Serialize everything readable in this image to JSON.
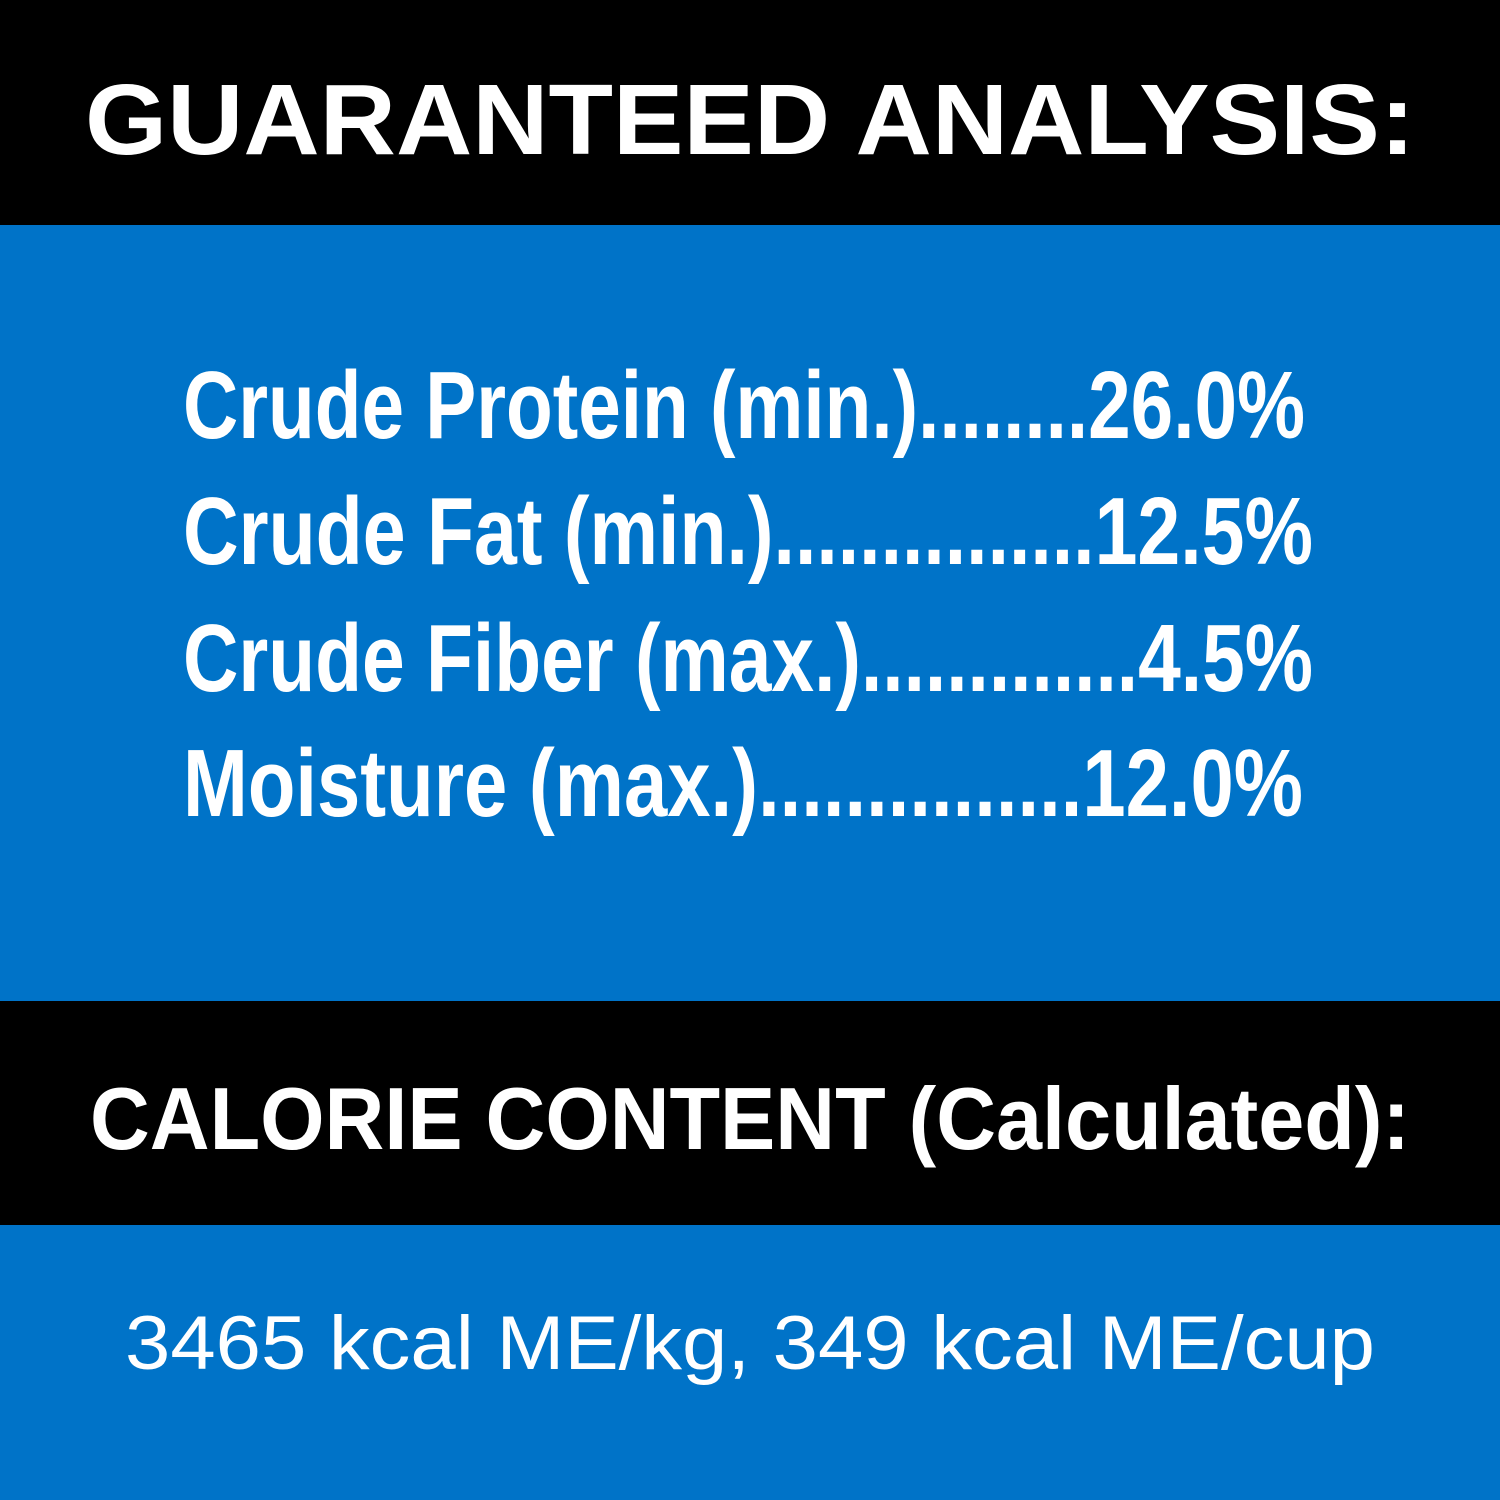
{
  "colors": {
    "band_dark": "#000000",
    "band_blue": "#0073c8",
    "text": "#ffffff"
  },
  "guaranteed_analysis": {
    "title": "GUARANTEED ANALYSIS:",
    "items": [
      {
        "text": "Crude Protein (min.)........26.0%"
      },
      {
        "text": "Crude Fat (min.)...............12.5%"
      },
      {
        "text": "Crude Fiber (max.).............4.5%"
      },
      {
        "text": "Moisture (max.)...............12.0%"
      }
    ]
  },
  "calorie_content": {
    "title": "CALORIE CONTENT (Calculated):",
    "value": "3465 kcal ME/kg, 349 kcal ME/cup"
  }
}
